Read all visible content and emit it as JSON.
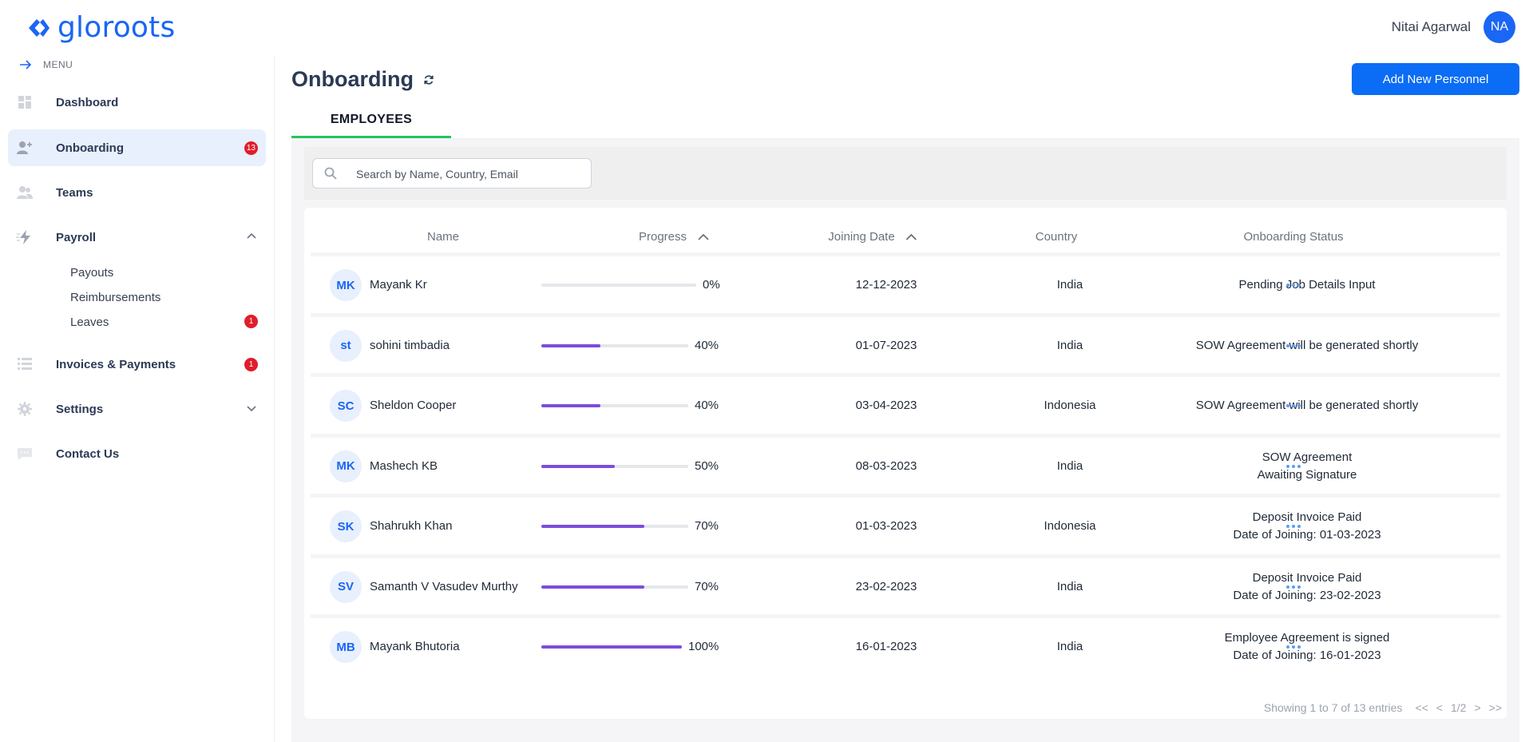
{
  "app": {
    "logo_text": "gloroots",
    "user_name": "Nitai Agarwal",
    "user_initials": "NA",
    "accent": "#1a66f5"
  },
  "sidebar": {
    "menu_label": "MENU",
    "items": [
      {
        "label": "Dashboard",
        "icon": "dashboard-icon"
      },
      {
        "label": "Onboarding",
        "icon": "add-user-icon",
        "badge": "13",
        "active": true
      },
      {
        "label": "Teams",
        "icon": "people-icon"
      },
      {
        "label": "Payroll",
        "icon": "bolt-icon",
        "expanded": true
      },
      {
        "label": "Invoices & Payments",
        "icon": "list-icon",
        "badge": "1"
      },
      {
        "label": "Settings",
        "icon": "gear-icon",
        "expanded": false
      },
      {
        "label": "Contact Us",
        "icon": "chat-icon"
      }
    ],
    "payroll_sub": [
      {
        "label": "Payouts"
      },
      {
        "label": "Reimbursements"
      },
      {
        "label": "Leaves",
        "badge": "1"
      }
    ]
  },
  "main": {
    "title": "Onboarding",
    "add_button": "Add New Personnel",
    "tab": "EMPLOYEES",
    "search_placeholder": "Search by Name, Country, Email",
    "columns": [
      "Name",
      "Progress",
      "Joining Date",
      "Country",
      "Onboarding Status"
    ],
    "rows": [
      {
        "initials": "MK",
        "name": "Mayank Kr",
        "progress": 0,
        "progress_label": "0%",
        "date": "12-12-2023",
        "country": "India",
        "status": [
          "Pending Job Details Input"
        ]
      },
      {
        "initials": "st",
        "name": "sohini timbadia",
        "progress": 40,
        "progress_label": "40%",
        "date": "01-07-2023",
        "country": "India",
        "status": [
          "SOW Agreement will be generated shortly"
        ]
      },
      {
        "initials": "SC",
        "name": "Sheldon Cooper",
        "progress": 40,
        "progress_label": "40%",
        "date": "03-04-2023",
        "country": "Indonesia",
        "status": [
          "SOW Agreement will be generated shortly"
        ]
      },
      {
        "initials": "MK",
        "name": "Mashech KB",
        "progress": 50,
        "progress_label": "50%",
        "date": "08-03-2023",
        "country": "India",
        "status": [
          "SOW Agreement",
          "Awaiting Signature"
        ]
      },
      {
        "initials": "SK",
        "name": "Shahrukh Khan",
        "progress": 70,
        "progress_label": "70%",
        "date": "01-03-2023",
        "country": "Indonesia",
        "status": [
          "Deposit Invoice Paid",
          "Date of Joining: 01-03-2023"
        ]
      },
      {
        "initials": "SV",
        "name": "Samanth V Vasudev Murthy",
        "progress": 70,
        "progress_label": "70%",
        "date": "23-02-2023",
        "country": "India",
        "status": [
          "Deposit Invoice Paid",
          "Date of Joining: 23-02-2023"
        ]
      },
      {
        "initials": "MB",
        "name": "Mayank Bhutoria",
        "progress": 100,
        "progress_label": "100%",
        "date": "16-01-2023",
        "country": "India",
        "status": [
          "Employee Agreement is signed",
          "Date of Joining: 16-01-2023"
        ]
      }
    ],
    "pagination": {
      "summary": "Showing 1 to 7 of 13 entries",
      "first": "<<",
      "prev": "<",
      "page": "1/2",
      "next": ">",
      "last": ">>"
    }
  }
}
